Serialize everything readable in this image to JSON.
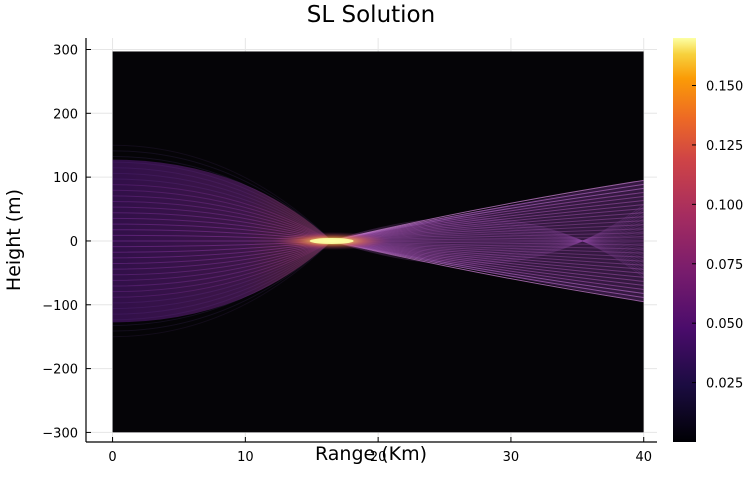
{
  "chart_data": {
    "type": "heatmap",
    "title": "SL Solution",
    "xlabel": "Range (Km)",
    "ylabel": "Height (m)",
    "xlim": [
      -2,
      41
    ],
    "ylim": [
      -315,
      318
    ],
    "data_extent_x": [
      0,
      40
    ],
    "data_extent_y": [
      -300,
      297
    ],
    "x_ticks": [
      0,
      10,
      20,
      30,
      40
    ],
    "x_tick_labels": [
      "0",
      "10",
      "20",
      "30",
      "40"
    ],
    "y_ticks": [
      -300,
      -200,
      -100,
      0,
      100,
      200,
      300
    ],
    "y_tick_labels": [
      "−300",
      "−200",
      "−100",
      "0",
      "100",
      "200",
      "300"
    ],
    "colorbar": {
      "range": [
        0,
        0.17
      ],
      "ticks": [
        0.025,
        0.05,
        0.075,
        0.1,
        0.125,
        0.15
      ],
      "tick_labels": [
        "0.025",
        "0.050",
        "0.075",
        "0.100",
        "0.125",
        "0.150"
      ],
      "colormap": "inferno"
    },
    "field": {
      "source_aperture_height": 150,
      "focus_range": 16.5,
      "spread_height_at_40km": 95,
      "peak_value": 0.17
    },
    "grid": true,
    "colors": {
      "background_field": "#050407",
      "frame": "#000000"
    }
  }
}
